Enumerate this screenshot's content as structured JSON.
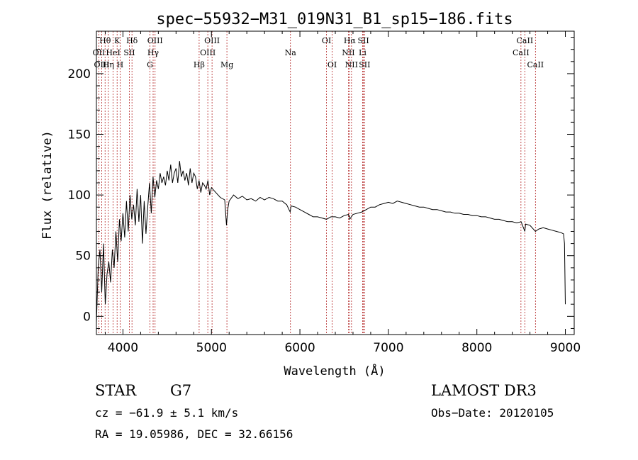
{
  "chart_data": {
    "type": "line",
    "title": "spec−55932−M31_019N31_B1_sp15−186.fits",
    "xlabel": "Wavelength (Å)",
    "ylabel": "Flux (relative)",
    "xlim": [
      3700,
      9100
    ],
    "ylim": [
      -15,
      235
    ],
    "xticks": [
      4000,
      5000,
      6000,
      7000,
      8000,
      9000
    ],
    "yticks": [
      0,
      50,
      100,
      150,
      200
    ],
    "xtick_labels": [
      "4000",
      "5000",
      "6000",
      "7000",
      "8000",
      "9000"
    ],
    "ytick_labels": [
      "0",
      "50",
      "100",
      "150",
      "200"
    ],
    "grid": false,
    "series": [
      {
        "name": "spectrum",
        "x": [
          3700,
          3720,
          3740,
          3760,
          3780,
          3800,
          3820,
          3840,
          3860,
          3880,
          3900,
          3920,
          3940,
          3960,
          3980,
          4000,
          4020,
          4040,
          4060,
          4080,
          4100,
          4120,
          4140,
          4160,
          4180,
          4200,
          4220,
          4240,
          4260,
          4280,
          4300,
          4320,
          4340,
          4360,
          4380,
          4400,
          4420,
          4440,
          4460,
          4480,
          4500,
          4520,
          4540,
          4560,
          4580,
          4600,
          4620,
          4640,
          4660,
          4680,
          4700,
          4720,
          4740,
          4760,
          4780,
          4800,
          4820,
          4840,
          4860,
          4880,
          4900,
          4920,
          4940,
          4960,
          4980,
          5000,
          5050,
          5100,
          5150,
          5170,
          5184,
          5200,
          5250,
          5300,
          5350,
          5400,
          5450,
          5500,
          5550,
          5600,
          5650,
          5700,
          5750,
          5800,
          5850,
          5890,
          5900,
          5950,
          6000,
          6050,
          6100,
          6150,
          6200,
          6250,
          6300,
          6350,
          6400,
          6450,
          6500,
          6550,
          6563,
          6600,
          6650,
          6700,
          6750,
          6800,
          6850,
          6900,
          6950,
          7000,
          7050,
          7100,
          7150,
          7200,
          7250,
          7300,
          7350,
          7400,
          7450,
          7500,
          7550,
          7600,
          7650,
          7700,
          7750,
          7800,
          7850,
          7900,
          7950,
          8000,
          8050,
          8100,
          8150,
          8200,
          8250,
          8300,
          8350,
          8400,
          8450,
          8500,
          8542,
          8550,
          8600,
          8662,
          8700,
          8750,
          8800,
          8850,
          8900,
          8950,
          8980,
          8990,
          9000
        ],
        "values": [
          -5,
          40,
          55,
          20,
          60,
          10,
          35,
          45,
          28,
          55,
          40,
          70,
          45,
          80,
          62,
          85,
          65,
          95,
          70,
          100,
          80,
          92,
          75,
          105,
          78,
          100,
          60,
          95,
          68,
          90,
          110,
          85,
          115,
          98,
          112,
          105,
          118,
          110,
          115,
          108,
          120,
          112,
          125,
          110,
          118,
          122,
          110,
          128,
          115,
          120,
          112,
          118,
          108,
          122,
          110,
          118,
          115,
          105,
          112,
          102,
          110,
          108,
          105,
          112,
          100,
          106,
          102,
          98,
          96,
          75,
          88,
          95,
          100,
          97,
          99,
          96,
          97,
          95,
          98,
          96,
          98,
          97,
          95,
          95,
          92,
          86,
          91,
          90,
          88,
          86,
          84,
          82,
          82,
          81,
          80,
          82,
          82,
          81,
          83,
          84,
          80,
          84,
          85,
          86,
          88,
          90,
          90,
          92,
          93,
          94,
          93,
          95,
          94,
          93,
          92,
          91,
          90,
          90,
          89,
          88,
          88,
          87,
          86,
          86,
          85,
          85,
          84,
          84,
          83,
          83,
          82,
          82,
          81,
          80,
          80,
          79,
          78,
          78,
          77,
          78,
          70,
          76,
          75,
          70,
          72,
          73,
          72,
          71,
          70,
          69,
          68,
          60,
          10
        ]
      }
    ],
    "lines": {
      "row1": [
        {
          "label": "Hθ",
          "x": 3798
        },
        {
          "label": "K",
          "x": 3934
        },
        {
          "label": "Hδ",
          "x": 4102
        },
        {
          "label": "OIII",
          "x": 4363
        },
        {
          "label": "OIII",
          "x": 5007
        },
        {
          "label": "OI",
          "x": 6300
        },
        {
          "label": "Hα",
          "x": 6563
        },
        {
          "label": "SII",
          "x": 6717
        },
        {
          "label": "CaII",
          "x": 8542
        }
      ],
      "row2": [
        {
          "label": "OII",
          "x": 3727
        },
        {
          "label": "HeI",
          "x": 3889
        },
        {
          "label": "SII",
          "x": 4072
        },
        {
          "label": "Hγ",
          "x": 4341
        },
        {
          "label": "OIII",
          "x": 4959
        },
        {
          "label": "Na",
          "x": 5893
        },
        {
          "label": "NII",
          "x": 6548
        },
        {
          "label": "Li",
          "x": 6708
        },
        {
          "label": "CaII",
          "x": 8498
        }
      ],
      "row3": [
        {
          "label": "OIII",
          "x": 3760
        },
        {
          "label": "Hη",
          "x": 3835
        },
        {
          "label": "H",
          "x": 3968
        },
        {
          "label": "G",
          "x": 4305
        },
        {
          "label": "Hβ",
          "x": 4861
        },
        {
          "label": "Mg",
          "x": 5175
        },
        {
          "label": "OI",
          "x": 6364
        },
        {
          "label": "NII",
          "x": 6583
        },
        {
          "label": "SII",
          "x": 6731
        },
        {
          "label": "CaII",
          "x": 8662
        }
      ]
    }
  },
  "info": {
    "class_label": "STAR",
    "subclass": "G7",
    "survey": "LAMOST DR3",
    "velocity": "cz = −61.9 ± 5.1 km/s",
    "obs_date": "Obs−Date: 20120105",
    "coords": "RA =  19.05986, DEC =  32.66156"
  },
  "colors": {
    "spectrum": "#000000",
    "line_marker": "#b22222",
    "axis": "#000000"
  }
}
